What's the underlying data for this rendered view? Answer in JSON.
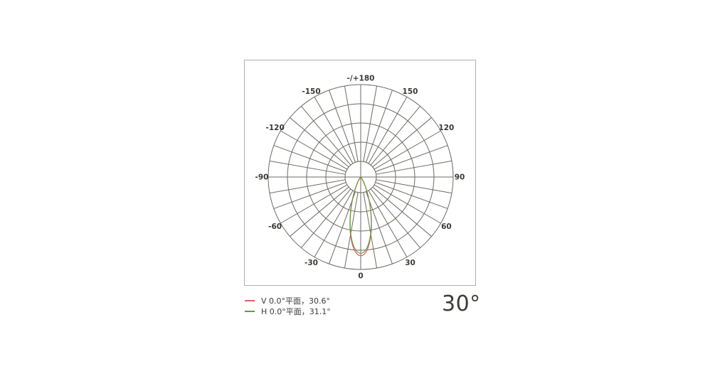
{
  "page": {
    "background": "#ffffff"
  },
  "chart_data": {
    "type": "polar",
    "subtype": "photometric-intensity-distribution",
    "top_axis_label": "-/+180",
    "angle_labels": [
      {
        "deg": 180,
        "text": "-/+180"
      },
      {
        "deg": 150,
        "text": "150"
      },
      {
        "deg": 120,
        "text": "120"
      },
      {
        "deg": 90,
        "text": "90"
      },
      {
        "deg": 60,
        "text": "60"
      },
      {
        "deg": 30,
        "text": "30"
      },
      {
        "deg": 0,
        "text": "0"
      },
      {
        "deg": -30,
        "text": "-30"
      },
      {
        "deg": -60,
        "text": "-60"
      },
      {
        "deg": -90,
        "text": "-90"
      },
      {
        "deg": -120,
        "text": "-120"
      },
      {
        "deg": -150,
        "text": "-150"
      }
    ],
    "grid": {
      "spoke_step_deg": 10,
      "label_step_deg": 30,
      "outer_radius_px": 130,
      "ring_fractions": [
        0.169,
        0.377,
        0.585,
        0.792,
        1.0
      ],
      "inner_hole_fraction": 0.169,
      "label_radius_px": 139,
      "line_color": "#6e6a65",
      "border_color": "#b4b1ad",
      "label_color": "#3a3937"
    },
    "series": [
      {
        "name": "V 0.0°平面",
        "beam_angle_deg": 30.6,
        "peak_fraction": 0.852,
        "color": "#e0615c",
        "stroke_width": 1.3,
        "legend_label": "V 0.0°平面，30.6°"
      },
      {
        "name": "H 0.0°平面",
        "beam_angle_deg": 31.1,
        "peak_fraction": 0.826,
        "color": "#5f9e3d",
        "stroke_width": 1.1,
        "legend_label": "H 0.0°平面，31.1°"
      }
    ],
    "beam_angle_summary": "30°"
  }
}
